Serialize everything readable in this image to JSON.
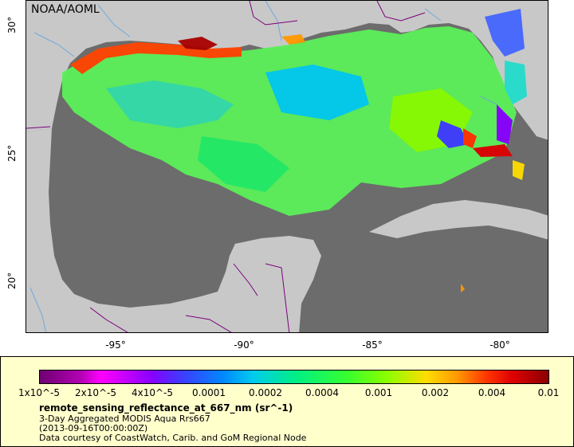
{
  "map": {
    "org_label": "NOAA/AOML",
    "lat_ticks": [
      "30°",
      "25°",
      "20°"
    ],
    "lon_ticks": [
      "-95°",
      "-90°",
      "-85°",
      "-80°"
    ],
    "colors": {
      "ocean": "#6c6c6c",
      "land": "#c8c8c8",
      "borders": "#7a007a",
      "rivers": "#6fa8dc"
    }
  },
  "legend": {
    "colorbar_labels": [
      "1x10^-5",
      "2x10^-5",
      "4x10^-5",
      "0.0001",
      "0.0002",
      "0.0004",
      "0.001",
      "0.002",
      "0.004",
      "0.01"
    ],
    "title": "remote_sensing_reflectance_at_667_nm (sr^-1)",
    "subtitle": "3-Day Aggregated MODIS Aqua Rrs667",
    "time": "(2013-09-16T00:00:00Z)",
    "credit": "Data courtesy of CoastWatch, Carib. and GoM Regional Node"
  }
}
